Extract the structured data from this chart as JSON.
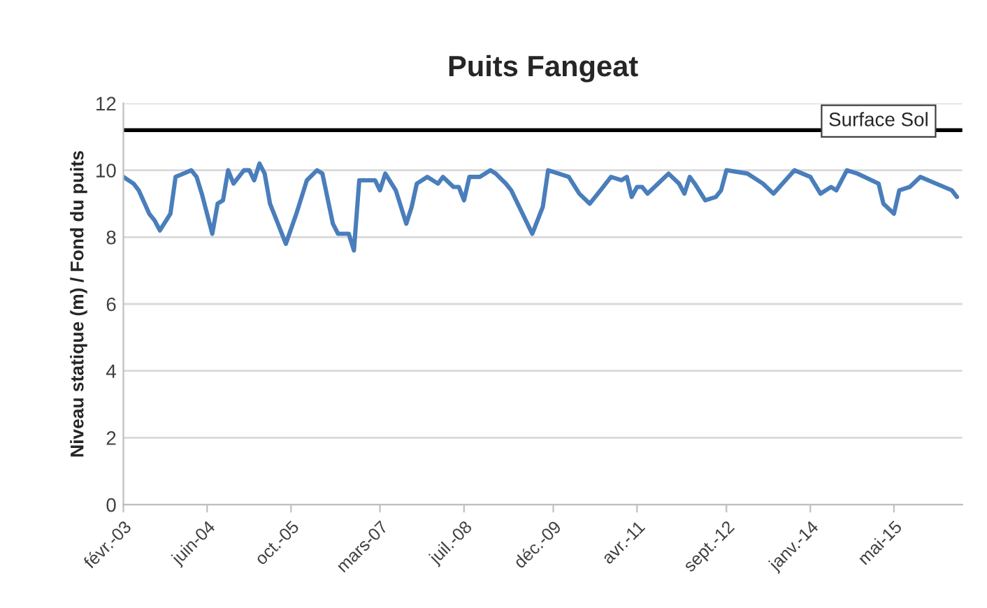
{
  "chart_data": {
    "type": "line",
    "title": "Puits Fangeat",
    "ylabel": "Niveau statique (m) / Fond du puits",
    "x": [
      "2003-02",
      "2003-04",
      "2003-05",
      "2003-07",
      "2003-08",
      "2003-09",
      "2003-11",
      "2003-12",
      "2004-03",
      "2004-04",
      "2004-05",
      "2004-07",
      "2004-08",
      "2004-09",
      "2004-10",
      "2004-11",
      "2005-01",
      "2005-02",
      "2005-03",
      "2005-04",
      "2005-05",
      "2005-06",
      "2005-09",
      "2005-11",
      "2006-01",
      "2006-03",
      "2006-04",
      "2006-06",
      "2006-07",
      "2006-09",
      "2006-10",
      "2006-11",
      "2006-12",
      "2007-02",
      "2007-03",
      "2007-04",
      "2007-06",
      "2007-08",
      "2007-09",
      "2007-10",
      "2007-12",
      "2008-02",
      "2008-03",
      "2008-05",
      "2008-06",
      "2008-07",
      "2008-08",
      "2008-10",
      "2008-12",
      "2009-01",
      "2009-03",
      "2009-04",
      "2009-08",
      "2009-10",
      "2009-11",
      "2010-01",
      "2010-03",
      "2010-05",
      "2010-07",
      "2010-09",
      "2010-11",
      "2011-01",
      "2011-02",
      "2011-03",
      "2011-04",
      "2011-05",
      "2011-06",
      "2011-08",
      "2011-10",
      "2011-12",
      "2012-01",
      "2012-02",
      "2012-03",
      "2012-05",
      "2012-07",
      "2012-08",
      "2012-09",
      "2013-01",
      "2013-04",
      "2013-06",
      "2013-10",
      "2014-01",
      "2014-03",
      "2014-05",
      "2014-06",
      "2014-08",
      "2014-10",
      "2015-02",
      "2015-03",
      "2015-05",
      "2015-06",
      "2015-08",
      "2015-10",
      "2016-01",
      "2016-04",
      "2016-05"
    ],
    "series": [
      {
        "color": "#4a7ebb",
        "values": [
          9.8,
          9.6,
          9.4,
          8.7,
          8.5,
          8.2,
          8.7,
          9.8,
          10.0,
          9.8,
          9.3,
          8.1,
          9.0,
          9.1,
          10.0,
          9.6,
          10.0,
          10.0,
          9.7,
          10.2,
          9.9,
          9.0,
          7.8,
          8.7,
          9.7,
          10.0,
          9.9,
          8.4,
          8.1,
          8.1,
          7.6,
          9.7,
          9.7,
          9.7,
          9.4,
          9.9,
          9.4,
          8.4,
          8.9,
          9.6,
          9.8,
          9.6,
          9.8,
          9.5,
          9.5,
          9.1,
          9.8,
          9.8,
          10.0,
          9.9,
          9.6,
          9.4,
          8.1,
          8.9,
          10.0,
          9.9,
          9.8,
          9.3,
          9.0,
          9.4,
          9.8,
          9.7,
          9.8,
          9.2,
          9.5,
          9.5,
          9.3,
          9.6,
          9.9,
          9.6,
          9.3,
          9.8,
          9.6,
          9.1,
          9.2,
          9.4,
          10.0,
          9.9,
          9.6,
          9.3,
          10.0,
          9.8,
          9.3,
          9.5,
          9.4,
          10.0,
          9.9,
          9.6,
          9.0,
          8.7,
          9.4,
          9.5,
          9.8,
          9.6,
          9.4,
          9.2
        ]
      }
    ],
    "xlim": [
      "2003-02",
      "2016-06"
    ],
    "xticks": [
      {
        "value": "2003-02",
        "label": "févr.-03"
      },
      {
        "value": "2004-06",
        "label": "juin-04"
      },
      {
        "value": "2005-10",
        "label": "oct.-05"
      },
      {
        "value": "2007-03",
        "label": "mars-07"
      },
      {
        "value": "2008-07",
        "label": "juil.-08"
      },
      {
        "value": "2009-12",
        "label": "déc.-09"
      },
      {
        "value": "2011-04",
        "label": "avr.-11"
      },
      {
        "value": "2012-09",
        "label": "sept.-12"
      },
      {
        "value": "2014-01",
        "label": "janv.-14"
      },
      {
        "value": "2015-05",
        "label": "mai-15"
      }
    ],
    "ylim": [
      0,
      12
    ],
    "yticks": [
      0,
      2,
      4,
      6,
      8,
      10,
      12
    ],
    "grid": "y",
    "legend": false,
    "marker": "none",
    "line_style": "solid",
    "ref_lines": [
      {
        "axis": "y",
        "value": 11.2,
        "label": "Surface Sol",
        "color": "#000000",
        "line_style": "solid"
      }
    ]
  }
}
